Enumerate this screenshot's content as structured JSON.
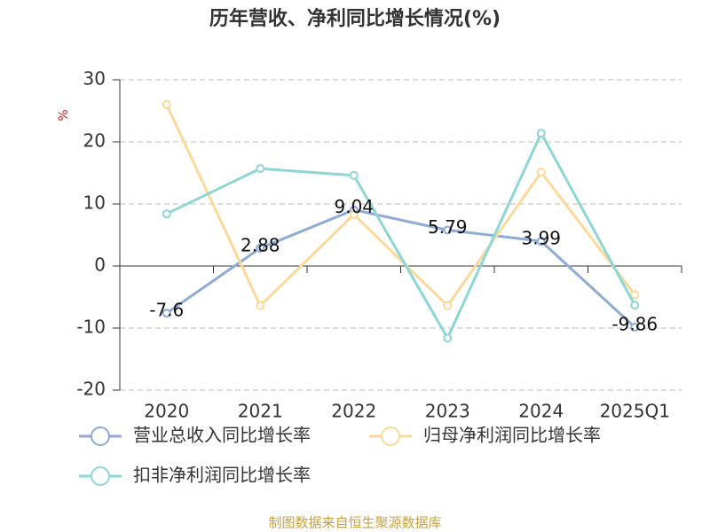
{
  "chart_data": {
    "type": "line",
    "title": "历年营收、净利同比增长情况(%)",
    "y_label": "%",
    "categories": [
      "2020",
      "2021",
      "2022",
      "2023",
      "2024",
      "2025Q1"
    ],
    "series": [
      {
        "name": "营业总收入同比增长率",
        "color": "#8eaad6",
        "values": [
          -7.6,
          2.88,
          9.04,
          5.79,
          3.99,
          -9.86
        ],
        "show_labels": true
      },
      {
        "name": "归母净利润同比增长率",
        "color": "#fcd99a",
        "values": [
          26,
          -6.4,
          8.3,
          -6.4,
          15.1,
          -4.6
        ],
        "show_labels": false
      },
      {
        "name": "扣非净利润同比增长率",
        "color": "#8dd6d4",
        "values": [
          8.4,
          15.7,
          14.6,
          -11.6,
          21.4,
          -6.3
        ],
        "show_labels": false
      }
    ],
    "ylim": [
      -20,
      30
    ],
    "yticks": [
      -20,
      -10,
      0,
      10,
      20,
      30
    ],
    "grid": true,
    "source": "制图数据来自恒生聚源数据库"
  }
}
